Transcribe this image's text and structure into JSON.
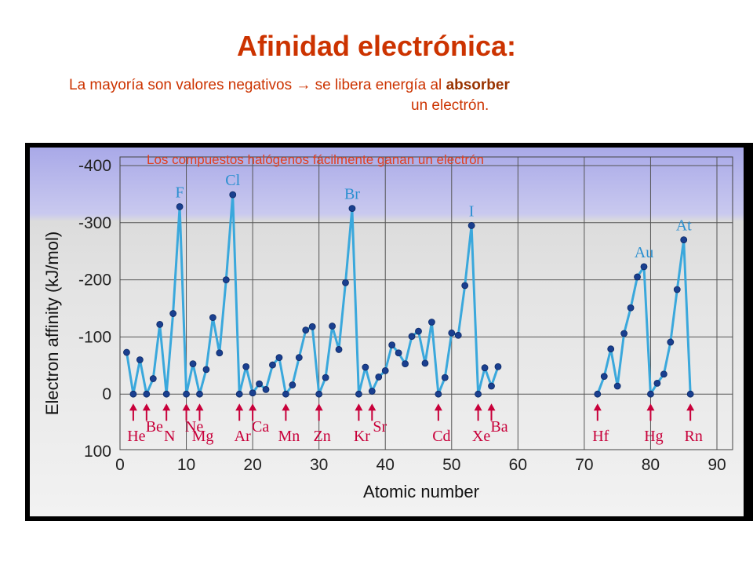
{
  "header": {
    "title": "Afinidad electrónica:",
    "subtitle_part1": "La mayoría son valores negativos ",
    "arrow": "→",
    "subtitle_part2": " se libera energía al ",
    "subtitle_bold": "absorber",
    "subtitle_line2": "un electrón."
  },
  "chart_data": {
    "type": "line",
    "xlabel": "Atomic number",
    "ylabel": "Electron affinity (kJ/mol)",
    "xlim": [
      0,
      90
    ],
    "ylim": [
      100,
      -400
    ],
    "x_ticks": [
      "0",
      "10",
      "20",
      "30",
      "40",
      "50",
      "60",
      "70",
      "80",
      "90"
    ],
    "y_ticks": [
      "-400",
      "-300",
      "-200",
      "-100",
      "0",
      "100"
    ],
    "annotation": "Los compuestos halógenos fácilmente ganan un electrón",
    "colors": {
      "line": "#3aa8dc",
      "marker": "#1a3f8f",
      "arrow": "#c8003a",
      "peak_label": "#2a8fd0"
    },
    "series": [
      {
        "segments": [
          {
            "x": [
              1,
              2,
              3,
              4,
              5,
              6,
              7,
              8,
              9,
              10,
              11,
              12,
              13,
              14,
              15,
              16,
              17,
              18,
              19,
              20,
              21,
              22,
              23,
              24,
              25,
              26,
              27,
              28,
              29,
              30,
              31,
              32,
              33,
              34,
              35,
              36,
              37,
              38,
              39,
              40,
              41,
              42,
              43,
              44,
              45,
              46,
              47,
              48,
              49,
              50,
              51,
              52,
              53,
              54,
              55,
              56,
              57
            ],
            "y": [
              -73,
              0,
              -60,
              0,
              -27,
              -122,
              0,
              -141,
              -328,
              0,
              -53,
              0,
              -43,
              -134,
              -72,
              -200,
              -349,
              0,
              -48,
              -2,
              -18,
              -8,
              -51,
              -64,
              0,
              -16,
              -64,
              -112,
              -118,
              0,
              -29,
              -119,
              -78,
              -195,
              -325,
              0,
              -47,
              -5,
              -30,
              -41,
              -86,
              -72,
              -53,
              -101,
              -110,
              -54,
              -126,
              0,
              -29,
              -107,
              -103,
              -190,
              -295,
              0,
              -46,
              -14,
              -48
            ]
          },
          {
            "x": [
              72,
              73,
              74,
              75,
              76,
              77,
              78,
              79,
              80,
              81,
              82,
              83,
              84,
              85,
              86
            ],
            "y": [
              0,
              -31,
              -79,
              -14,
              -106,
              -151,
              -205,
              -223,
              0,
              -19,
              -35,
              -91,
              -183,
              -270,
              0
            ]
          }
        ]
      }
    ],
    "peak_labels": [
      {
        "text": "F",
        "x": 9
      },
      {
        "text": "Cl",
        "x": 17
      },
      {
        "text": "Br",
        "x": 35
      },
      {
        "text": "I",
        "x": 53
      },
      {
        "text": "Au",
        "x": 79
      },
      {
        "text": "At",
        "x": 85
      }
    ],
    "element_labels": [
      {
        "text": "He",
        "x": 2,
        "row": "low"
      },
      {
        "text": "Be",
        "x": 4,
        "row": "high"
      },
      {
        "text": "N",
        "x": 7,
        "row": "low"
      },
      {
        "text": "Ne",
        "x": 10,
        "row": "high"
      },
      {
        "text": "Mg",
        "x": 12,
        "row": "low"
      },
      {
        "text": "Ar",
        "x": 18,
        "row": "low"
      },
      {
        "text": "Ca",
        "x": 20,
        "row": "high"
      },
      {
        "text": "Mn",
        "x": 25,
        "row": "low"
      },
      {
        "text": "Zn",
        "x": 30,
        "row": "low"
      },
      {
        "text": "Kr",
        "x": 36,
        "row": "low"
      },
      {
        "text": "Sr",
        "x": 38,
        "row": "high"
      },
      {
        "text": "Cd",
        "x": 48,
        "row": "low"
      },
      {
        "text": "Xe",
        "x": 54,
        "row": "low"
      },
      {
        "text": "Ba",
        "x": 56,
        "row": "high"
      },
      {
        "text": "Hf",
        "x": 72,
        "row": "low"
      },
      {
        "text": "Hg",
        "x": 80,
        "row": "low"
      },
      {
        "text": "Rn",
        "x": 86,
        "row": "low"
      }
    ]
  }
}
